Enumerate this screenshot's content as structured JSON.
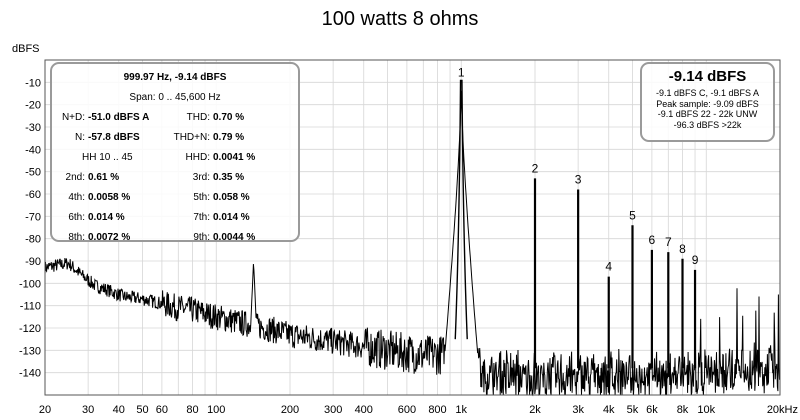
{
  "chart_data": {
    "type": "line",
    "title": "100 watts 8 ohms",
    "ylabel": "dBFS",
    "xlabel": "",
    "xscale": "log",
    "xlim": [
      20,
      20000
    ],
    "ylim": [
      -150,
      0
    ],
    "grid": true,
    "x_ticks": [
      {
        "value": 20,
        "label": "20"
      },
      {
        "value": 30,
        "label": "30"
      },
      {
        "value": 40,
        "label": "40"
      },
      {
        "value": 50,
        "label": "50"
      },
      {
        "value": 60,
        "label": "60"
      },
      {
        "value": 80,
        "label": "80"
      },
      {
        "value": 100,
        "label": "100"
      },
      {
        "value": 200,
        "label": "200"
      },
      {
        "value": 300,
        "label": "300"
      },
      {
        "value": 400,
        "label": "400"
      },
      {
        "value": 600,
        "label": "600"
      },
      {
        "value": 800,
        "label": "800"
      },
      {
        "value": 1000,
        "label": "1k"
      },
      {
        "value": 2000,
        "label": "2k"
      },
      {
        "value": 3000,
        "label": "3k"
      },
      {
        "value": 4000,
        "label": "4k"
      },
      {
        "value": 5000,
        "label": "5k"
      },
      {
        "value": 6000,
        "label": "6k"
      },
      {
        "value": 8000,
        "label": "8k"
      },
      {
        "value": 10000,
        "label": "10k"
      },
      {
        "value": 20000,
        "label": "20kHz"
      }
    ],
    "y_ticks": [
      {
        "value": -10,
        "label": "-10"
      },
      {
        "value": -20,
        "label": "-20"
      },
      {
        "value": -30,
        "label": "-30"
      },
      {
        "value": -40,
        "label": "-40"
      },
      {
        "value": -50,
        "label": "-50"
      },
      {
        "value": -60,
        "label": "-60"
      },
      {
        "value": -70,
        "label": "-70"
      },
      {
        "value": -80,
        "label": "-80"
      },
      {
        "value": -90,
        "label": "-90"
      },
      {
        "value": -100,
        "label": "-100"
      },
      {
        "value": -110,
        "label": "-110"
      },
      {
        "value": -120,
        "label": "-120"
      },
      {
        "value": -130,
        "label": "-130"
      },
      {
        "value": -140,
        "label": "-140"
      }
    ],
    "noise_floor": [
      [
        20,
        -93
      ],
      [
        22,
        -92
      ],
      [
        25,
        -91
      ],
      [
        28,
        -96
      ],
      [
        32,
        -101
      ],
      [
        36,
        -103
      ],
      [
        42,
        -106
      ],
      [
        50,
        -107
      ],
      [
        60,
        -109
      ],
      [
        70,
        -111
      ],
      [
        80,
        -112
      ],
      [
        100,
        -115
      ],
      [
        130,
        -118
      ],
      [
        160,
        -120
      ],
      [
        200,
        -123
      ],
      [
        300,
        -126
      ],
      [
        500,
        -130
      ],
      [
        700,
        -132
      ],
      [
        900,
        -132
      ],
      [
        1200,
        -137
      ],
      [
        2000,
        -138
      ],
      [
        5000,
        -137
      ],
      [
        10000,
        -136
      ],
      [
        20000,
        -134
      ]
    ],
    "hf_spur_region": [
      7500,
      20000
    ],
    "spurs": [
      {
        "x": 142,
        "y": -90
      }
    ],
    "fundamental": {
      "x": 999.97,
      "y": -9.14,
      "label": "1"
    },
    "harmonics": [
      {
        "label": "2",
        "x": 2000,
        "y": -53
      },
      {
        "label": "3",
        "x": 3000,
        "y": -58
      },
      {
        "label": "4",
        "x": 4000,
        "y": -97
      },
      {
        "label": "5",
        "x": 5000,
        "y": -74
      },
      {
        "label": "6",
        "x": 6000,
        "y": -85
      },
      {
        "label": "7",
        "x": 7000,
        "y": -86
      },
      {
        "label": "8",
        "x": 8000,
        "y": -89
      },
      {
        "label": "9",
        "x": 9000,
        "y": -94
      }
    ]
  },
  "metrics": {
    "freq_level": "999.97 Hz, -9.14 dBFS",
    "span_label": "Span:",
    "span_value": "0 .. 45,600 Hz",
    "nd_label": "N+D:",
    "nd_value": "-51.0 dBFS A",
    "thd_label": "THD:",
    "thd_value": "0.70 %",
    "n_label": "N:",
    "n_value": "-57.8 dBFS",
    "thdn_label": "THD+N:",
    "thdn_value": "0.79 %",
    "hh_label": "HH 10 .. 45",
    "hhd_label": "HHD:",
    "hhd_value": "0.0041 %",
    "h2_label": "2nd:",
    "h2_value": "0.61 %",
    "h3_label": "3rd:",
    "h3_value": "0.35 %",
    "h4_label": "4th:",
    "h4_value": "0.0058 %",
    "h5_label": "5th:",
    "h5_value": "0.058 %",
    "h6_label": "6th:",
    "h6_value": "0.014 %",
    "h7_label": "7th:",
    "h7_value": "0.014 %",
    "h8_label": "8th:",
    "h8_value": "0.0072 %",
    "h9_label": "9th:",
    "h9_value": "0.0044 %"
  },
  "peak_box": {
    "level": "-9.14 dBFS",
    "line1": "-9.1 dBFS C, -9.1 dBFS A",
    "line2": "Peak sample: -9.09 dBFS",
    "line3": "-9.1 dBFS 22 - 22k UNW",
    "line4": "-96.3 dBFS >22k"
  },
  "colors": {
    "trace": "#000000",
    "grid": "#d6d6d6",
    "axis": "#555555",
    "box_border": "#9a9a9a"
  }
}
